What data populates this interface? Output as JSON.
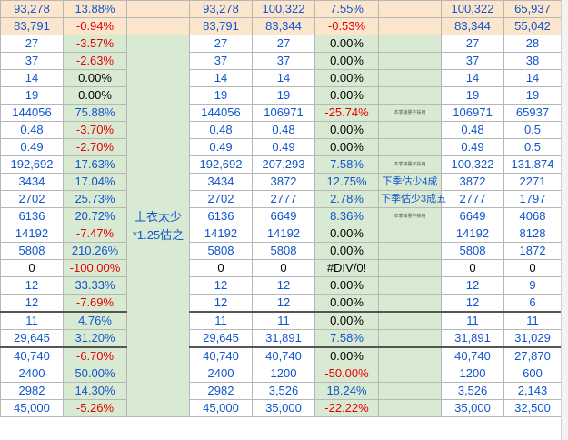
{
  "colors": {
    "header_fill": "#fce5cd",
    "green_fill": "#d9ead3",
    "number_text": "#1155cc",
    "negative_text": "#e60000"
  },
  "merged_note": {
    "line1": "上衣太少",
    "line2": "*1.25估之"
  },
  "rows": [
    {
      "c": [
        "93,278",
        "13.88%",
        "",
        "93,278",
        "100,322",
        "7.55%",
        "",
        "100,322",
        "65,937"
      ],
      "header": true
    },
    {
      "c": [
        "83,791",
        "-0.94%",
        "",
        "83,791",
        "83,344",
        "-0.53%",
        "",
        "83,344",
        "55,042"
      ],
      "header": true
    },
    {
      "c": [
        "27",
        "-3.57%",
        "",
        "27",
        "27",
        "0.00%",
        "",
        "27",
        "28"
      ]
    },
    {
      "c": [
        "37",
        "-2.63%",
        "",
        "37",
        "37",
        "0.00%",
        "",
        "37",
        "38"
      ]
    },
    {
      "c": [
        "14",
        "0.00%",
        "",
        "14",
        "14",
        "0.00%",
        "",
        "14",
        "14"
      ]
    },
    {
      "c": [
        "19",
        "0.00%",
        "",
        "19",
        "19",
        "0.00%",
        "",
        "19",
        "19"
      ]
    },
    {
      "c": [
        "144056",
        "75.88%",
        "",
        "144056",
        "106971",
        "-25.74%",
        "本季銷量不採用",
        "106971",
        "65937"
      ]
    },
    {
      "c": [
        "0.48",
        "-3.70%",
        "",
        "0.48",
        "0.48",
        "0.00%",
        "",
        "0.48",
        "0.5"
      ]
    },
    {
      "c": [
        "0.49",
        "-2.70%",
        "",
        "0.49",
        "0.49",
        "0.00%",
        "",
        "0.49",
        "0.5"
      ]
    },
    {
      "c": [
        "192,692",
        "17.63%",
        "",
        "192,692",
        "207,293",
        "7.58%",
        "本季銷量不採用",
        "100,322",
        "131,874"
      ]
    },
    {
      "c": [
        "3434",
        "17.04%",
        "",
        "3434",
        "3872",
        "12.75%",
        "下季估少4成",
        "3872",
        "2271"
      ]
    },
    {
      "c": [
        "2702",
        "25.73%",
        "",
        "2702",
        "2777",
        "2.78%",
        "下季估少3成五",
        "2777",
        "1797"
      ]
    },
    {
      "c": [
        "6136",
        "20.72%",
        "",
        "6136",
        "6649",
        "8.36%",
        "本季銷量不採用",
        "6649",
        "4068"
      ]
    },
    {
      "c": [
        "14192",
        "-7.47%",
        "",
        "14192",
        "14192",
        "0.00%",
        "",
        "14192",
        "8128"
      ]
    },
    {
      "c": [
        "5808",
        "210.26%",
        "",
        "5808",
        "5808",
        "0.00%",
        "",
        "5808",
        "1872"
      ]
    },
    {
      "c": [
        "0",
        "-100.00%",
        "",
        "0",
        "0",
        "#DIV/0!",
        "",
        "0",
        "0"
      ]
    },
    {
      "c": [
        "12",
        "33.33%",
        "",
        "12",
        "12",
        "0.00%",
        "",
        "12",
        "9"
      ]
    },
    {
      "c": [
        "12",
        "-7.69%",
        "",
        "12",
        "12",
        "0.00%",
        "",
        "12",
        "6"
      ],
      "thick_after": true
    },
    {
      "c": [
        "11",
        "4.76%",
        "",
        "11",
        "11",
        "0.00%",
        "",
        "11",
        "11"
      ]
    },
    {
      "c": [
        "29,645",
        "31.20%",
        "",
        "29,645",
        "31,891",
        "7.58%",
        "",
        "31,891",
        "31,029"
      ],
      "thick_after": true
    },
    {
      "c": [
        "40,740",
        "-6.70%",
        "",
        "40,740",
        "40,740",
        "0.00%",
        "",
        "40,740",
        "27,870"
      ]
    },
    {
      "c": [
        "2400",
        "50.00%",
        "",
        "2400",
        "1200",
        "-50.00%",
        "",
        "1200",
        "600"
      ]
    },
    {
      "c": [
        "2982",
        "14.30%",
        "",
        "2982",
        "3,526",
        "18.24%",
        "",
        "3,526",
        "2,143"
      ]
    },
    {
      "c": [
        "45,000",
        "-5.26%",
        "",
        "45,000",
        "35,000",
        "-22.22%",
        "",
        "35,000",
        "32,500"
      ]
    }
  ]
}
